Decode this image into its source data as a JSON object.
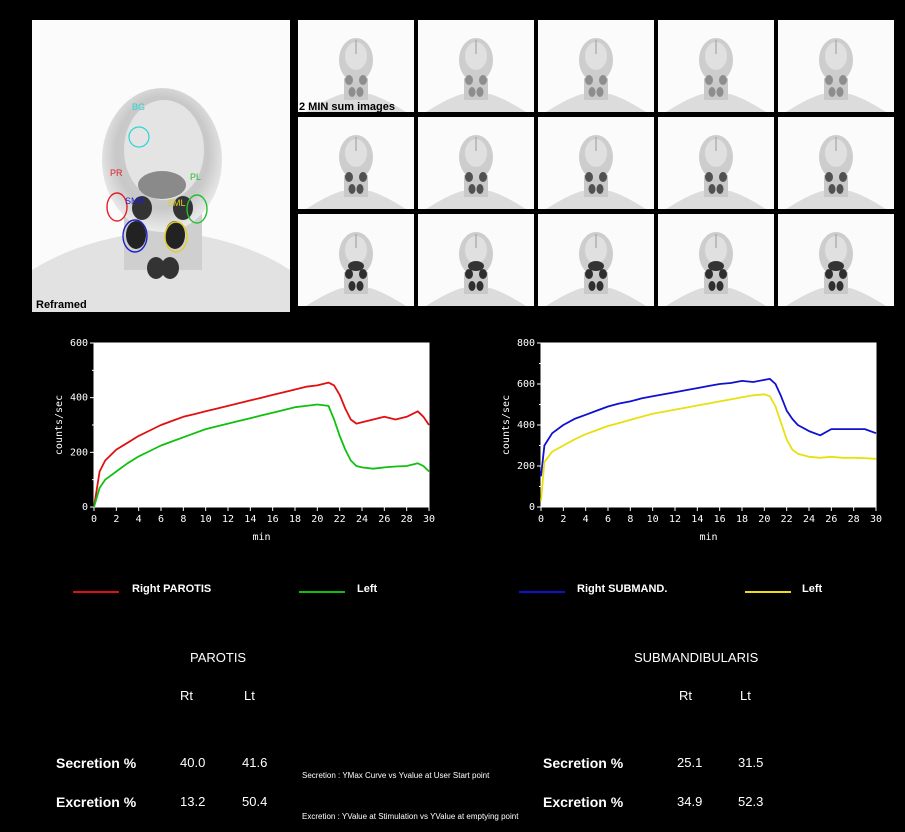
{
  "main_image": {
    "caption": "Reframed",
    "roi_labels": {
      "bg": "BG",
      "pr": "PR",
      "pl": "PL",
      "smr": "SMR",
      "sml": "SML"
    },
    "colors": {
      "bg": "#2ad4d4",
      "pr": "#e0202a",
      "pl": "#22c030",
      "smr": "#2020c8",
      "sml": "#e0d020"
    }
  },
  "thumbnails": {
    "caption": "2 MIN sum images",
    "rows": 3,
    "cols": 5
  },
  "chart_data": [
    {
      "type": "line",
      "xlabel": "min",
      "ylabel": "counts/sec",
      "xlim": [
        0,
        30
      ],
      "ylim": [
        0,
        600
      ],
      "xticks": [
        "0",
        "2",
        "4",
        "6",
        "8",
        "10",
        "12",
        "14",
        "16",
        "18",
        "20",
        "22",
        "24",
        "26",
        "28",
        "30"
      ],
      "yticks": [
        "0",
        "200",
        "400",
        "600"
      ],
      "series": [
        {
          "name": "Right PAROTIS",
          "color": "#e01010",
          "x": [
            0,
            0.5,
            1,
            2,
            3,
            4,
            5,
            6,
            7,
            8,
            9,
            10,
            11,
            12,
            13,
            14,
            15,
            16,
            17,
            18,
            19,
            20,
            21,
            21.5,
            22,
            22.5,
            23,
            23.5,
            24,
            25,
            26,
            27,
            28,
            29,
            29.5,
            30
          ],
          "y": [
            0,
            130,
            170,
            210,
            235,
            260,
            280,
            300,
            315,
            330,
            340,
            350,
            360,
            370,
            380,
            390,
            400,
            410,
            420,
            430,
            440,
            445,
            455,
            445,
            410,
            360,
            320,
            305,
            310,
            320,
            330,
            320,
            330,
            350,
            330,
            300
          ]
        },
        {
          "name": "Left",
          "color": "#10c010",
          "x": [
            0,
            0.5,
            1,
            2,
            3,
            4,
            5,
            6,
            7,
            8,
            9,
            10,
            11,
            12,
            13,
            14,
            15,
            16,
            17,
            18,
            19,
            20,
            21,
            21.5,
            22,
            22.5,
            23,
            23.5,
            24,
            25,
            26,
            27,
            28,
            29,
            29.5,
            30
          ],
          "y": [
            0,
            70,
            100,
            130,
            160,
            185,
            205,
            225,
            240,
            255,
            270,
            285,
            295,
            305,
            315,
            325,
            335,
            345,
            355,
            365,
            370,
            375,
            370,
            320,
            260,
            210,
            170,
            150,
            145,
            140,
            145,
            148,
            150,
            160,
            150,
            130
          ]
        }
      ]
    },
    {
      "type": "line",
      "xlabel": "min",
      "ylabel": "counts/sec",
      "xlim": [
        0,
        30
      ],
      "ylim": [
        0,
        800
      ],
      "xticks": [
        "0",
        "2",
        "4",
        "6",
        "8",
        "10",
        "12",
        "14",
        "16",
        "18",
        "20",
        "22",
        "24",
        "26",
        "28",
        "30"
      ],
      "yticks": [
        "0",
        "200",
        "400",
        "600",
        "800"
      ],
      "series": [
        {
          "name": "Right SUBMAND.",
          "color": "#1010d0",
          "x": [
            0,
            0.3,
            1,
            2,
            3,
            4,
            5,
            6,
            7,
            8,
            9,
            10,
            11,
            12,
            13,
            14,
            15,
            16,
            17,
            18,
            19,
            20,
            20.5,
            21,
            21.5,
            22,
            22.5,
            23,
            24,
            25,
            26,
            27,
            28,
            29,
            30
          ],
          "y": [
            150,
            300,
            360,
            400,
            430,
            450,
            470,
            490,
            505,
            515,
            530,
            540,
            550,
            560,
            570,
            580,
            590,
            600,
            605,
            615,
            610,
            620,
            625,
            600,
            540,
            470,
            430,
            400,
            370,
            350,
            380,
            380,
            380,
            380,
            360
          ]
        },
        {
          "name": "Left",
          "color": "#e8e010",
          "x": [
            0,
            0.3,
            1,
            2,
            3,
            4,
            5,
            6,
            7,
            8,
            9,
            10,
            11,
            12,
            13,
            14,
            15,
            16,
            17,
            18,
            19,
            20,
            20.5,
            21,
            21.5,
            22,
            22.5,
            23,
            24,
            25,
            26,
            27,
            28,
            29,
            30
          ],
          "y": [
            30,
            220,
            270,
            300,
            330,
            355,
            375,
            395,
            410,
            425,
            440,
            455,
            465,
            475,
            485,
            495,
            505,
            515,
            525,
            535,
            545,
            550,
            540,
            490,
            410,
            330,
            280,
            260,
            245,
            240,
            245,
            240,
            240,
            238,
            235
          ]
        }
      ]
    }
  ],
  "legend": {
    "parotis_right": "Right   PAROTIS",
    "parotis_left": "Left",
    "submand_right": "Right   SUBMAND.",
    "submand_left": "Left",
    "colors": {
      "parotis_right": "#e01010",
      "parotis_left": "#10c010",
      "submand_right": "#1010d0",
      "submand_left": "#e8e010"
    }
  },
  "parotis_table": {
    "title": "PAROTIS",
    "rt_header": "Rt",
    "lt_header": "Lt",
    "secretion_label": "Secretion %",
    "excretion_label": "Excretion %",
    "secretion_rt": "40.0",
    "secretion_lt": "41.6",
    "excretion_rt": "13.2",
    "excretion_lt": "50.4"
  },
  "submand_table": {
    "title": "SUBMANDIBULARIS",
    "rt_header": "Rt",
    "lt_header": "Lt",
    "secretion_label": "Secretion %",
    "excretion_label": "Excretion %",
    "secretion_rt": "25.1",
    "secretion_lt": "31.5",
    "excretion_rt": "34.9",
    "excretion_lt": "52.3"
  },
  "notes": {
    "secretion": "Secretion : YMax Curve vs Yvalue at User Start point",
    "excretion": "Excretion : YValue at Stimulation vs YValue at emptying point"
  }
}
